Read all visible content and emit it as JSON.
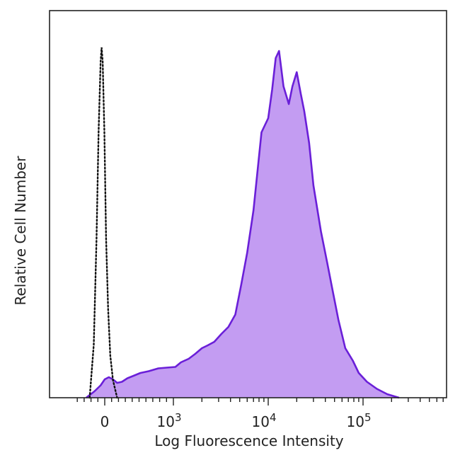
{
  "chart_data": {
    "type": "area",
    "xlabel": "Log Fluorescence Intensity",
    "ylabel": "Relative Cell Number",
    "x_scale": "biexponential",
    "xlim": [
      -500,
      1000000
    ],
    "ylim": [
      0,
      1.0
    ],
    "ticks": [
      {
        "value": 0,
        "base": "0",
        "exp": ""
      },
      {
        "value": 1000,
        "base": "10",
        "exp": "3"
      },
      {
        "value": 10000,
        "base": "10",
        "exp": "4"
      },
      {
        "value": 100000,
        "base": "10",
        "exp": "5"
      }
    ],
    "grid": false,
    "colors": {
      "fill": "#c39cf2",
      "stroke": "#6a1fd8",
      "control": "#111111"
    },
    "series": [
      {
        "style": "filled-solid",
        "points": [
          [
            -270,
            0.0
          ],
          [
            -150,
            0.018
          ],
          [
            -60,
            0.035
          ],
          [
            0,
            0.052
          ],
          [
            60,
            0.058
          ],
          [
            120,
            0.052
          ],
          [
            180,
            0.042
          ],
          [
            250,
            0.045
          ],
          [
            330,
            0.055
          ],
          [
            420,
            0.062
          ],
          [
            520,
            0.07
          ],
          [
            640,
            0.075
          ],
          [
            780,
            0.083
          ],
          [
            900,
            0.085
          ],
          [
            1050,
            0.087
          ],
          [
            1200,
            0.1
          ],
          [
            1450,
            0.11
          ],
          [
            1700,
            0.124
          ],
          [
            2000,
            0.14
          ],
          [
            2300,
            0.148
          ],
          [
            2700,
            0.158
          ],
          [
            3200,
            0.18
          ],
          [
            3800,
            0.2
          ],
          [
            4500,
            0.235
          ],
          [
            5200,
            0.32
          ],
          [
            6000,
            0.41
          ],
          [
            7000,
            0.53
          ],
          [
            8500,
            0.75
          ],
          [
            10000,
            0.79
          ],
          [
            11000,
            0.87
          ],
          [
            12000,
            0.96
          ],
          [
            13000,
            0.98
          ],
          [
            14500,
            0.88
          ],
          [
            16500,
            0.83
          ],
          [
            18000,
            0.88
          ],
          [
            20000,
            0.92
          ],
          [
            22000,
            0.86
          ],
          [
            24000,
            0.81
          ],
          [
            27000,
            0.72
          ],
          [
            30000,
            0.6
          ],
          [
            36000,
            0.47
          ],
          [
            42000,
            0.38
          ],
          [
            48000,
            0.3
          ],
          [
            55000,
            0.22
          ],
          [
            65000,
            0.14
          ],
          [
            78000,
            0.105
          ],
          [
            90000,
            0.07
          ],
          [
            110000,
            0.045
          ],
          [
            140000,
            0.025
          ],
          [
            180000,
            0.01
          ],
          [
            240000,
            0.0
          ]
        ]
      },
      {
        "style": "dotted",
        "points": [
          [
            -220,
            0.0
          ],
          [
            -160,
            0.15
          ],
          [
            -120,
            0.45
          ],
          [
            -90,
            0.75
          ],
          [
            -60,
            0.95
          ],
          [
            -45,
            0.99
          ],
          [
            -30,
            0.95
          ],
          [
            -5,
            0.75
          ],
          [
            20,
            0.45
          ],
          [
            50,
            0.25
          ],
          [
            80,
            0.12
          ],
          [
            120,
            0.05
          ],
          [
            180,
            0.0
          ]
        ]
      }
    ]
  }
}
